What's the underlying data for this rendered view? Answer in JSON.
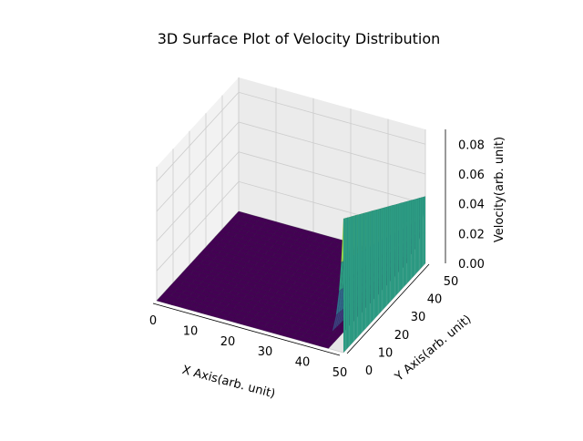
{
  "chart_data": {
    "type": "surface3d",
    "title": "3D Surface Plot of Velocity Distribution",
    "xlabel": "X Axis(arb. unit)",
    "ylabel": "Y Axis(arb. unit)",
    "zlabel": "Velocity(arb. unit)",
    "xlim": [
      0,
      50
    ],
    "ylim": [
      0,
      50
    ],
    "zlim": [
      0,
      0.09
    ],
    "x_ticks": [
      0,
      10,
      20,
      30,
      40,
      50
    ],
    "y_ticks": [
      0,
      10,
      20,
      30,
      40,
      50
    ],
    "z_ticks": [
      "0.00",
      "0.02",
      "0.04",
      "0.06",
      "0.08"
    ],
    "colormap": "viridis",
    "grid": true,
    "surface": {
      "description_values": {
        "floor_velocity": 0.0,
        "ridge_x": 50,
        "ridge_y_range": [
          0,
          50
        ],
        "ridge_peak_at_y0": 0.09,
        "ridge_peak_at_y50": 0.045
      }
    },
    "colors": {
      "low": "#440154",
      "high": "#fde725",
      "pane": "#f2f2f2",
      "grid": "#cccccc"
    }
  }
}
